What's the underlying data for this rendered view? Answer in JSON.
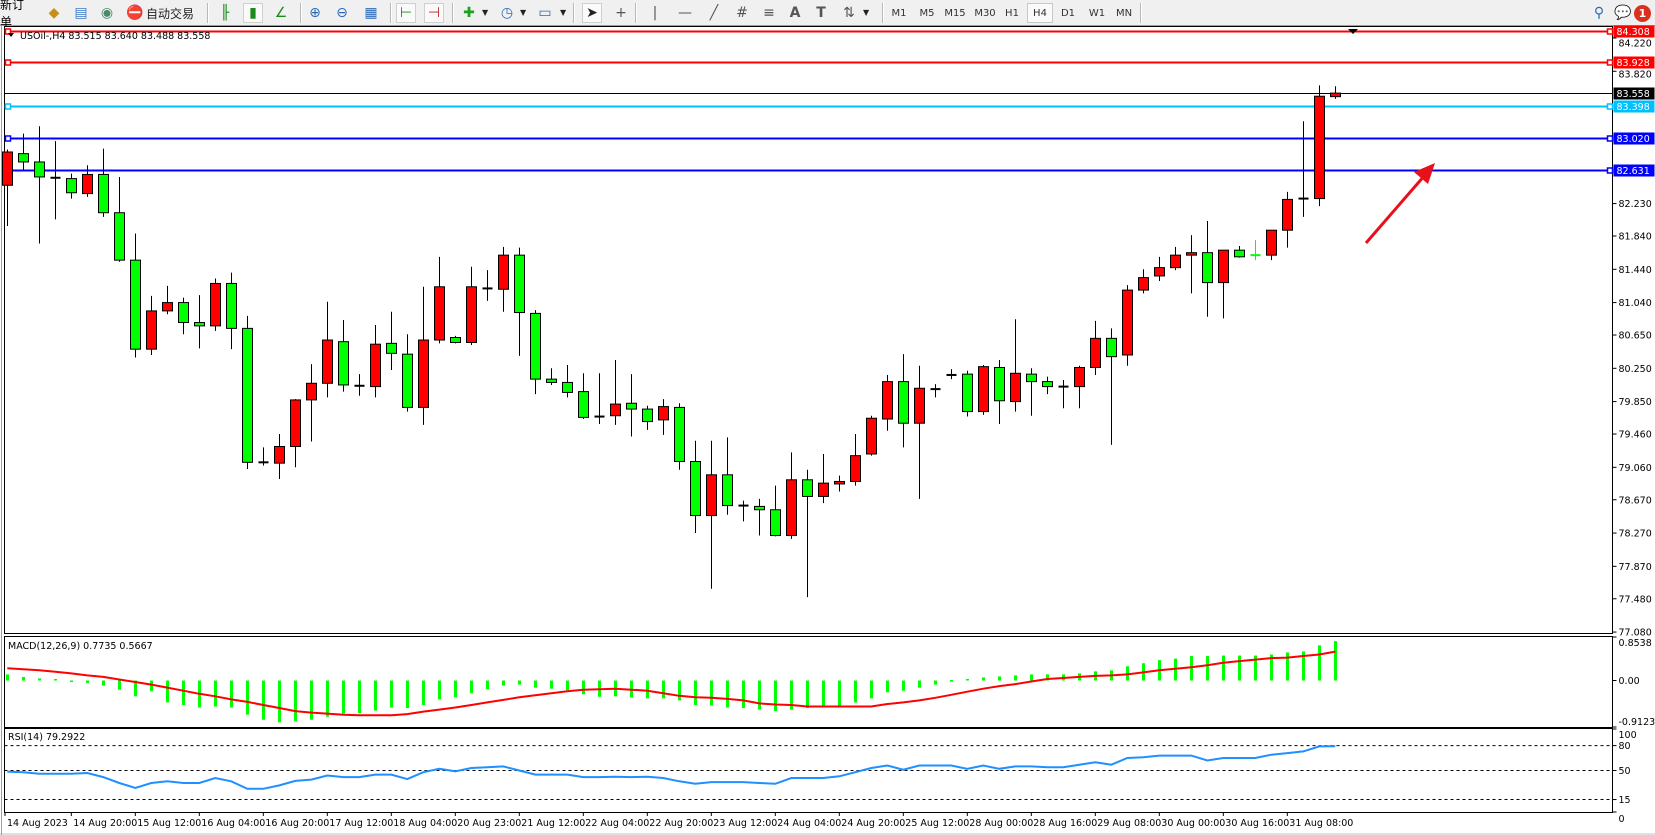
{
  "toolbar": {
    "new_order_label": "新订单",
    "auto_trading_label": "自动交易",
    "periods": [
      "M1",
      "M5",
      "M15",
      "M30",
      "H1",
      "H4",
      "D1",
      "W1",
      "MN"
    ],
    "active_period": "H4",
    "notification_count": "1",
    "icons": [
      "market-watch-icon",
      "data-window-icon",
      "signals-icon",
      "auto-trading-icon",
      "bar-chart-icon",
      "candlestick-icon",
      "line-chart-icon",
      "zoom-in-icon",
      "zoom-out-icon",
      "tile-windows-icon",
      "auto-scroll-icon",
      "chart-shift-icon",
      "indicators-icon",
      "periodicity-icon",
      "templates-icon",
      "cursor-icon",
      "crosshair-icon",
      "vertical-line-icon",
      "horizontal-line-icon",
      "trendline-icon",
      "equidistant-channel-icon",
      "fibonacci-icon",
      "text-icon",
      "text-label-icon",
      "arrows-icon",
      "search-icon",
      "chat-icon"
    ]
  },
  "chart": {
    "header": "USOil-,H4  83.515 83.640 83.488 83.558"
  },
  "chart_data": {
    "type": "candlestick",
    "symbol": "USOil-",
    "timeframe": "H4",
    "colors": {
      "up": "#ff0000",
      "down": "#00ff00",
      "doji": "#000000"
    },
    "ylim": [
      77.08,
      84.308
    ],
    "price_ticks": [
      "84.220",
      "83.820",
      "82.230",
      "81.840",
      "81.440",
      "81.040",
      "80.650",
      "80.250",
      "79.850",
      "79.460",
      "79.060",
      "78.670",
      "78.270",
      "77.870",
      "77.480",
      "77.080"
    ],
    "levels": [
      {
        "value": "84.308",
        "color": "#ff0000"
      },
      {
        "value": "83.928",
        "color": "#ff0000"
      },
      {
        "value": "83.558",
        "color": "#000000"
      },
      {
        "value": "83.398",
        "color": "#00bfff"
      },
      {
        "value": "83.020",
        "color": "#0000ff"
      },
      {
        "value": "82.631",
        "color": "#0000ff"
      }
    ],
    "time_labels": [
      "14 Aug 2023",
      "14 Aug 20:00",
      "15 Aug 12:00",
      "16 Aug 04:00",
      "16 Aug 20:00",
      "17 Aug 12:00",
      "18 Aug 04:00",
      "20 Aug 23:00",
      "21 Aug 12:00",
      "22 Aug 04:00",
      "22 Aug 20:00",
      "23 Aug 12:00",
      "24 Aug 04:00",
      "24 Aug 20:00",
      "25 Aug 12:00",
      "28 Aug 00:00",
      "28 Aug 16:00",
      "29 Aug 08:00",
      "30 Aug 00:00",
      "30 Aug 16:00",
      "31 Aug 08:00"
    ],
    "ohlc": [
      [
        82.45,
        82.88,
        81.96,
        82.85
      ],
      [
        82.83,
        83.07,
        82.64,
        82.73
      ],
      [
        82.73,
        83.16,
        81.75,
        82.55
      ],
      [
        82.54,
        82.98,
        82.04,
        82.54
      ],
      [
        82.53,
        82.59,
        82.29,
        82.36
      ],
      [
        82.35,
        82.69,
        82.31,
        82.58
      ],
      [
        82.58,
        82.89,
        82.07,
        82.12
      ],
      [
        82.12,
        82.55,
        81.53,
        81.55
      ],
      [
        81.55,
        81.87,
        80.38,
        80.48
      ],
      [
        80.48,
        81.12,
        80.41,
        80.94
      ],
      [
        80.94,
        81.24,
        80.9,
        81.04
      ],
      [
        81.04,
        81.1,
        80.66,
        80.8
      ],
      [
        80.8,
        81.13,
        80.49,
        80.76
      ],
      [
        80.76,
        81.33,
        80.7,
        81.27
      ],
      [
        81.27,
        81.4,
        80.48,
        80.73
      ],
      [
        80.73,
        80.88,
        79.04,
        79.12
      ],
      [
        79.12,
        79.3,
        79.08,
        79.12
      ],
      [
        79.11,
        79.46,
        78.92,
        79.31
      ],
      [
        79.31,
        79.88,
        79.06,
        79.87
      ],
      [
        79.87,
        80.3,
        79.37,
        80.07
      ],
      [
        80.07,
        81.05,
        79.9,
        80.59
      ],
      [
        80.57,
        80.83,
        79.97,
        80.05
      ],
      [
        80.04,
        80.18,
        79.92,
        80.04
      ],
      [
        80.03,
        80.77,
        79.9,
        80.54
      ],
      [
        80.55,
        80.93,
        80.23,
        80.43
      ],
      [
        80.42,
        80.66,
        79.73,
        79.78
      ],
      [
        79.78,
        81.23,
        79.57,
        80.59
      ],
      [
        80.59,
        81.59,
        80.55,
        81.23
      ],
      [
        80.62,
        80.64,
        80.55,
        80.56
      ],
      [
        80.56,
        81.47,
        80.53,
        81.23
      ],
      [
        81.21,
        81.43,
        81.06,
        81.21
      ],
      [
        81.2,
        81.71,
        80.93,
        81.61
      ],
      [
        81.61,
        81.7,
        80.4,
        80.92
      ],
      [
        80.91,
        80.95,
        79.94,
        80.12
      ],
      [
        80.12,
        80.25,
        80.05,
        80.08
      ],
      [
        80.08,
        80.29,
        79.9,
        79.96
      ],
      [
        79.97,
        80.19,
        79.64,
        79.66
      ],
      [
        79.67,
        80.19,
        79.58,
        79.67
      ],
      [
        79.68,
        80.35,
        79.57,
        79.82
      ],
      [
        79.83,
        80.18,
        79.43,
        79.76
      ],
      [
        79.76,
        79.8,
        79.51,
        79.61
      ],
      [
        79.63,
        79.88,
        79.45,
        79.79
      ],
      [
        79.78,
        79.83,
        79.03,
        79.13
      ],
      [
        79.13,
        79.38,
        78.27,
        78.48
      ],
      [
        78.48,
        79.38,
        77.6,
        78.97
      ],
      [
        78.97,
        79.42,
        78.49,
        78.6
      ],
      [
        78.6,
        78.66,
        78.41,
        78.6
      ],
      [
        78.59,
        78.68,
        78.24,
        78.55
      ],
      [
        78.55,
        78.84,
        78.23,
        78.24
      ],
      [
        78.24,
        79.24,
        78.2,
        78.91
      ],
      [
        78.91,
        79.03,
        77.5,
        78.71
      ],
      [
        78.71,
        79.22,
        78.63,
        78.87
      ],
      [
        78.86,
        78.96,
        78.77,
        78.89
      ],
      [
        78.89,
        79.46,
        78.84,
        79.2
      ],
      [
        79.22,
        79.68,
        79.2,
        79.65
      ],
      [
        79.64,
        80.17,
        79.5,
        80.09
      ],
      [
        80.09,
        80.42,
        79.3,
        79.59
      ],
      [
        79.59,
        80.28,
        78.68,
        80.01
      ],
      [
        80.0,
        80.06,
        79.9,
        80.0
      ],
      [
        80.17,
        80.24,
        80.12,
        80.17
      ],
      [
        80.18,
        80.22,
        79.67,
        79.73
      ],
      [
        79.73,
        80.29,
        79.69,
        80.27
      ],
      [
        80.26,
        80.35,
        79.58,
        79.86
      ],
      [
        79.85,
        80.84,
        79.73,
        80.19
      ],
      [
        80.18,
        80.25,
        79.68,
        80.09
      ],
      [
        80.09,
        80.15,
        79.94,
        80.03
      ],
      [
        80.03,
        80.11,
        79.77,
        80.03
      ],
      [
        80.03,
        80.28,
        79.77,
        80.26
      ],
      [
        80.26,
        80.82,
        80.17,
        80.61
      ],
      [
        80.61,
        80.73,
        79.33,
        80.39
      ],
      [
        80.41,
        81.25,
        80.28,
        81.19
      ],
      [
        81.19,
        81.44,
        81.15,
        81.34
      ],
      [
        81.36,
        81.59,
        81.3,
        81.46
      ],
      [
        81.46,
        81.71,
        81.43,
        81.61
      ],
      [
        81.61,
        81.85,
        81.15,
        81.64
      ],
      [
        81.64,
        82.02,
        80.87,
        81.28
      ],
      [
        81.28,
        81.67,
        80.85,
        81.67
      ],
      [
        81.67,
        81.72,
        81.58,
        81.59
      ],
      [
        81.62,
        81.79,
        81.55,
        81.61
      ],
      [
        81.61,
        81.91,
        81.55,
        81.91
      ],
      [
        81.91,
        82.37,
        81.7,
        82.28
      ],
      [
        82.29,
        83.22,
        82.07,
        82.29
      ],
      [
        82.29,
        83.65,
        82.2,
        83.52
      ],
      [
        83.515,
        83.64,
        83.488,
        83.558
      ]
    ],
    "macd": {
      "label": "MACD(12,26,9) 0.7735 0.5667",
      "ylim": [
        -0.9123,
        0.8538
      ],
      "ticks": [
        "0.8538",
        "0.00",
        "-0.9123"
      ],
      "histogram_color": "#00ff00",
      "signal_color": "#ff0000",
      "histogram": [
        0.12,
        0.07,
        0.04,
        0.03,
        -0.03,
        -0.05,
        -0.1,
        -0.18,
        -0.31,
        -0.21,
        -0.43,
        -0.48,
        -0.53,
        -0.51,
        -0.53,
        -0.67,
        -0.77,
        -0.82,
        -0.8,
        -0.77,
        -0.71,
        -0.65,
        -0.64,
        -0.59,
        -0.53,
        -0.54,
        -0.48,
        -0.37,
        -0.33,
        -0.25,
        -0.17,
        -0.1,
        -0.08,
        -0.14,
        -0.16,
        -0.19,
        -0.27,
        -0.32,
        -0.31,
        -0.33,
        -0.35,
        -0.35,
        -0.39,
        -0.48,
        -0.49,
        -0.53,
        -0.54,
        -0.57,
        -0.6,
        -0.57,
        -0.54,
        -0.5,
        -0.5,
        -0.43,
        -0.35,
        -0.23,
        -0.2,
        -0.14,
        -0.08,
        0.01,
        0.03,
        0.06,
        0.08,
        0.1,
        0.12,
        0.12,
        0.12,
        0.14,
        0.18,
        0.2,
        0.28,
        0.34,
        0.4,
        0.43,
        0.48,
        0.48,
        0.49,
        0.49,
        0.49,
        0.51,
        0.55,
        0.57,
        0.69,
        0.7735
      ],
      "signal": [
        0.24,
        0.22,
        0.2,
        0.17,
        0.14,
        0.1,
        0.07,
        0.02,
        -0.03,
        -0.08,
        -0.14,
        -0.2,
        -0.26,
        -0.31,
        -0.37,
        -0.42,
        -0.48,
        -0.54,
        -0.6,
        -0.63,
        -0.65,
        -0.67,
        -0.68,
        -0.68,
        -0.68,
        -0.66,
        -0.61,
        -0.57,
        -0.53,
        -0.48,
        -0.43,
        -0.38,
        -0.33,
        -0.29,
        -0.25,
        -0.21,
        -0.18,
        -0.17,
        -0.16,
        -0.18,
        -0.2,
        -0.25,
        -0.3,
        -0.33,
        -0.34,
        -0.36,
        -0.39,
        -0.45,
        -0.47,
        -0.48,
        -0.51,
        -0.51,
        -0.51,
        -0.51,
        -0.51,
        -0.46,
        -0.43,
        -0.39,
        -0.34,
        -0.28,
        -0.22,
        -0.16,
        -0.11,
        -0.07,
        -0.02,
        0.03,
        0.05,
        0.07,
        0.09,
        0.1,
        0.12,
        0.16,
        0.2,
        0.23,
        0.26,
        0.3,
        0.35,
        0.38,
        0.41,
        0.44,
        0.45,
        0.48,
        0.51,
        0.5667
      ]
    },
    "rsi": {
      "label": "RSI(14) 79.2922",
      "ylim": [
        0,
        100
      ],
      "ticks": [
        "100",
        "80",
        "50",
        "15",
        "0"
      ],
      "levels": [
        80,
        50,
        15
      ],
      "color": "#1e90ff",
      "values": [
        48.7,
        48,
        46,
        46,
        46,
        47,
        42,
        35,
        29,
        35,
        37,
        35,
        35,
        41,
        37,
        28,
        28,
        32,
        37.5,
        39,
        44,
        42,
        42,
        45,
        45,
        39.6,
        48,
        52,
        49,
        53,
        54,
        55,
        50,
        45,
        45,
        45,
        42,
        42,
        42.5,
        42,
        42.5,
        41,
        37,
        34,
        36,
        36,
        36,
        35,
        34,
        41,
        41,
        41,
        43,
        48,
        53,
        56,
        51,
        56,
        56,
        56,
        52,
        56,
        52,
        55,
        55,
        54,
        54,
        57,
        60,
        57,
        65,
        66,
        68,
        68,
        68,
        62,
        65,
        65,
        65,
        69,
        71,
        73,
        79,
        79.29
      ]
    }
  }
}
